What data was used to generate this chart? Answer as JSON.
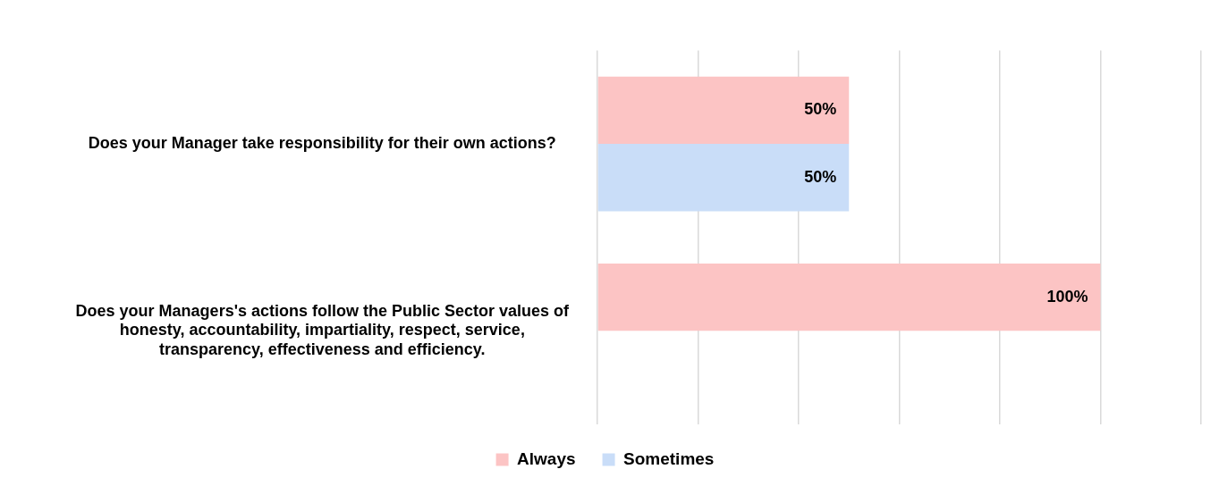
{
  "chart_data": {
    "type": "bar",
    "orientation": "horizontal",
    "categories": [
      "Does your Manager take responsibility for their own actions?",
      "Does your Managers's actions follow the Public Sector values of honesty, accountability, impartiality, respect, service, transparency, effectiveness and efficiency."
    ],
    "series": [
      {
        "name": "Always",
        "color": "#fcc4c4",
        "values": [
          50,
          100
        ],
        "value_labels": [
          "50%",
          "100%"
        ]
      },
      {
        "name": "Sometimes",
        "color": "#c9ddf8",
        "values": [
          50,
          null
        ],
        "value_labels": [
          "50%",
          null
        ]
      }
    ],
    "xlim": [
      0,
      120
    ],
    "xticks": [
      {
        "value": 0,
        "label": null
      },
      {
        "value": 20,
        "label": null
      },
      {
        "value": 40,
        "label": null
      },
      {
        "value": 60,
        "label": null
      },
      {
        "value": 80,
        "label": null
      },
      {
        "value": 100,
        "label": null
      },
      {
        "value": 120,
        "label": null
      }
    ],
    "grid": "x",
    "legend": "bottom",
    "tick_labels": "y"
  }
}
